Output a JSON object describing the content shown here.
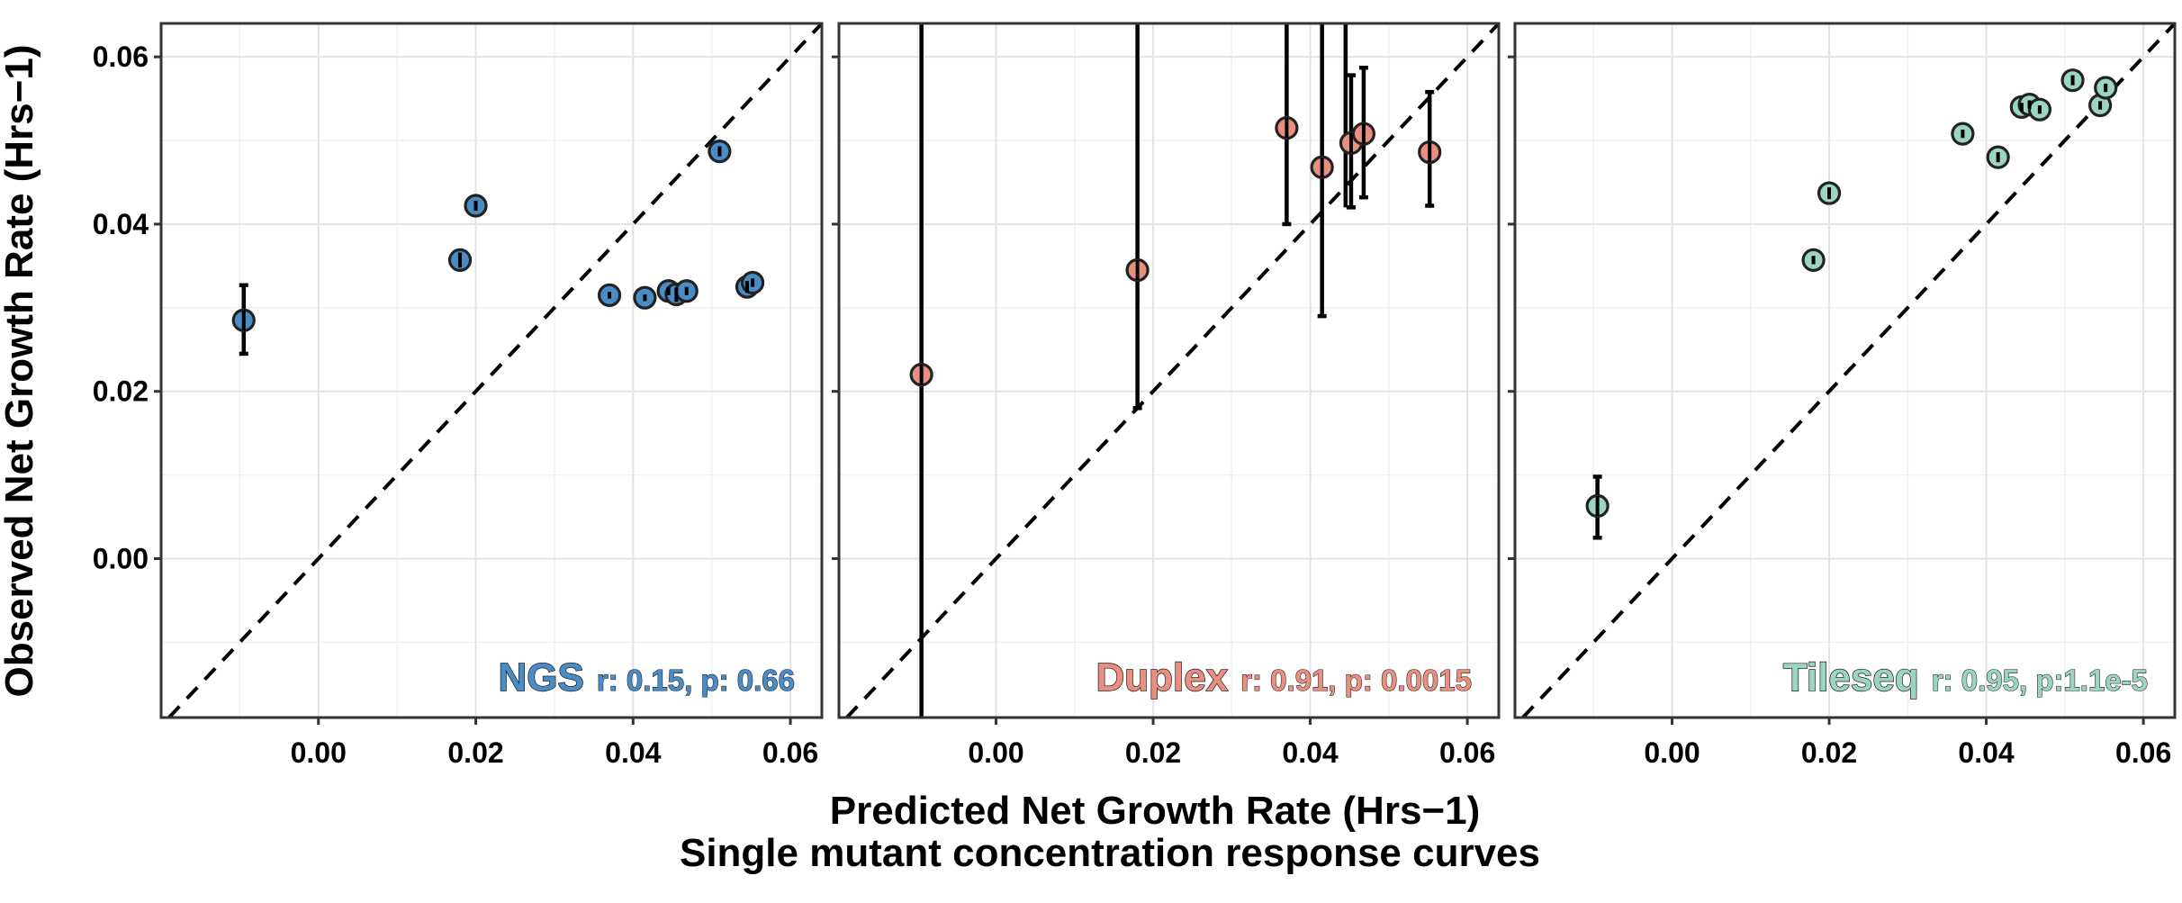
{
  "figure": {
    "ylabel": "Observed Net Growth Rate (Hrs−1)",
    "xlabel": "Predicted Net Growth Rate (Hrs−1)",
    "subtitle": "Single mutant concentration response curves"
  },
  "chart_data": [
    {
      "type": "scatter",
      "panel": "NGS",
      "color": "#4a8cc6",
      "annotation": {
        "method": "NGS",
        "stats": "r: 0.15, p: 0.66"
      },
      "xlim": [
        -0.02,
        0.064
      ],
      "ylim": [
        -0.019,
        0.064
      ],
      "xticks": [
        0.0,
        0.02,
        0.04,
        0.06
      ],
      "yticks": [
        0.0,
        0.02,
        0.04,
        0.06
      ],
      "tick_labels": [
        "0.00",
        "0.02",
        "0.04",
        "0.06"
      ],
      "reference_line": "y = x",
      "points": [
        {
          "x": -0.0095,
          "y": 0.0285,
          "lo": 0.0245,
          "hi": 0.0327
        },
        {
          "x": 0.018,
          "y": 0.0357,
          "lo": 0.0348,
          "hi": 0.0366
        },
        {
          "x": 0.02,
          "y": 0.0422,
          "lo": 0.0416,
          "hi": 0.0428
        },
        {
          "x": 0.037,
          "y": 0.0315,
          "lo": 0.0311,
          "hi": 0.0319
        },
        {
          "x": 0.0415,
          "y": 0.0312,
          "lo": 0.0308,
          "hi": 0.0316
        },
        {
          "x": 0.0445,
          "y": 0.032,
          "lo": 0.0315,
          "hi": 0.0325
        },
        {
          "x": 0.0455,
          "y": 0.0316,
          "lo": 0.0307,
          "hi": 0.0324
        },
        {
          "x": 0.0468,
          "y": 0.032,
          "lo": 0.0315,
          "hi": 0.0325
        },
        {
          "x": 0.051,
          "y": 0.0487,
          "lo": 0.0481,
          "hi": 0.0493
        },
        {
          "x": 0.0545,
          "y": 0.0325,
          "lo": 0.0318,
          "hi": 0.0332
        },
        {
          "x": 0.0552,
          "y": 0.033,
          "lo": 0.0325,
          "hi": 0.0335
        }
      ]
    },
    {
      "type": "scatter",
      "panel": "Duplex",
      "color": "#e88f7f",
      "annotation": {
        "method": "Duplex",
        "stats": "r: 0.91, p: 0.0015"
      },
      "xlim": [
        -0.02,
        0.064
      ],
      "ylim": [
        -0.019,
        0.064
      ],
      "xticks": [
        0.0,
        0.02,
        0.04,
        0.06
      ],
      "yticks": [
        0.0,
        0.02,
        0.04,
        0.06
      ],
      "tick_labels": [
        "0.00",
        "0.02",
        "0.04",
        "0.06"
      ],
      "reference_line": "y = x",
      "points": [
        {
          "x": -0.0095,
          "y": 0.022,
          "lo": -0.019,
          "hi": 0.064
        },
        {
          "x": 0.018,
          "y": 0.0345,
          "lo": 0.018,
          "hi": 0.064
        },
        {
          "x": 0.037,
          "y": 0.0515,
          "lo": 0.04,
          "hi": 0.064
        },
        {
          "x": 0.0415,
          "y": 0.0468,
          "lo": 0.029,
          "hi": 0.064
        },
        {
          "x": 0.0452,
          "y": 0.0497,
          "lo": 0.042,
          "hi": 0.0578
        },
        {
          "x": 0.0468,
          "y": 0.0508,
          "lo": 0.0432,
          "hi": 0.0587
        },
        {
          "x": 0.0552,
          "y": 0.0486,
          "lo": 0.0422,
          "hi": 0.0558
        }
      ],
      "vertical_lines": [
        {
          "x": 0.0445,
          "lo": 0.042,
          "hi": 0.064
        }
      ]
    },
    {
      "type": "scatter",
      "panel": "Tileseq",
      "color": "#9bd5bf",
      "annotation": {
        "method": "Tileseq",
        "stats": "r: 0.95, p:1.1e-5"
      },
      "xlim": [
        -0.02,
        0.064
      ],
      "ylim": [
        -0.019,
        0.064
      ],
      "xticks": [
        0.0,
        0.02,
        0.04,
        0.06
      ],
      "yticks": [
        0.0,
        0.02,
        0.04,
        0.06
      ],
      "tick_labels": [
        "0.00",
        "0.02",
        "0.04",
        "0.06"
      ],
      "reference_line": "y = x",
      "points": [
        {
          "x": -0.0095,
          "y": 0.0063,
          "lo": 0.0025,
          "hi": 0.0098
        },
        {
          "x": 0.018,
          "y": 0.0357,
          "lo": 0.0352,
          "hi": 0.0362
        },
        {
          "x": 0.02,
          "y": 0.0437,
          "lo": 0.043,
          "hi": 0.0444
        },
        {
          "x": 0.037,
          "y": 0.0508,
          "lo": 0.0503,
          "hi": 0.0513
        },
        {
          "x": 0.0415,
          "y": 0.048,
          "lo": 0.0474,
          "hi": 0.0486
        },
        {
          "x": 0.0445,
          "y": 0.054,
          "lo": 0.0535,
          "hi": 0.0545
        },
        {
          "x": 0.0455,
          "y": 0.0543,
          "lo": 0.0538,
          "hi": 0.0548
        },
        {
          "x": 0.0468,
          "y": 0.0537,
          "lo": 0.0532,
          "hi": 0.0542
        },
        {
          "x": 0.051,
          "y": 0.0572,
          "lo": 0.0566,
          "hi": 0.0578
        },
        {
          "x": 0.0545,
          "y": 0.0542,
          "lo": 0.0537,
          "hi": 0.0547
        },
        {
          "x": 0.0552,
          "y": 0.0563,
          "lo": 0.0558,
          "hi": 0.0568
        }
      ]
    }
  ]
}
